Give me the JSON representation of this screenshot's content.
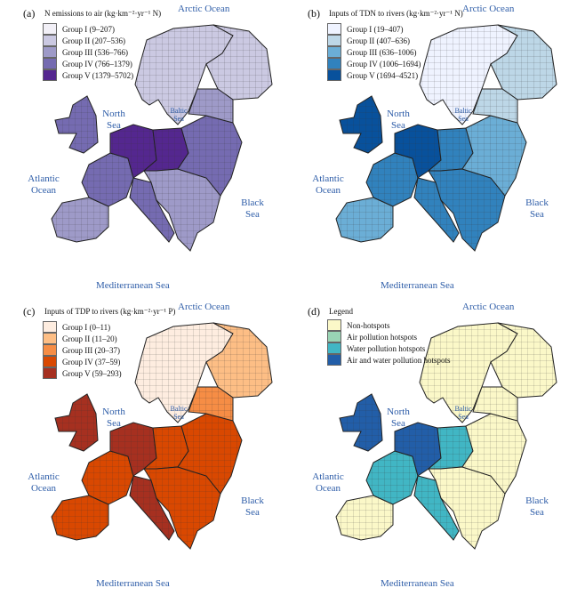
{
  "panels": [
    {
      "label": "(a)",
      "title": "N emissions to air (kg·km⁻²·yr⁻¹ N)",
      "legend": [
        "Group I (9–207)",
        "Group II (207–536)",
        "Group III (536–766)",
        "Group IV (766–1379)",
        "Group V (1379–5702)"
      ],
      "colors": [
        "#f2f0f7",
        "#cbc9e2",
        "#9e9ac8",
        "#756bb1",
        "#54278f"
      ],
      "region_groups": [
        1,
        1,
        3,
        2,
        3,
        4,
        4,
        3,
        2,
        3,
        2
      ]
    },
    {
      "label": "(b)",
      "title": "Inputs of TDN to rivers (kg·km⁻²·yr⁻¹ N)",
      "legend": [
        "Group I (19–407)",
        "Group II (407–636)",
        "Group III (636–1006)",
        "Group IV (1006–1694)",
        "Group V (1694–4521)"
      ],
      "colors": [
        "#eff3ff",
        "#bdd7e7",
        "#6baed6",
        "#3182bd",
        "#08519c"
      ],
      "region_groups": [
        0,
        1,
        4,
        2,
        3,
        4,
        3,
        3,
        3,
        2,
        1
      ]
    },
    {
      "label": "(c)",
      "title": "Inputs of TDP to rivers (kg·km⁻²·yr⁻¹ P)",
      "legend": [
        "Group I (0–11)",
        "Group II (11–20)",
        "Group III (20–37)",
        "Group IV (37–59)",
        "Group V (59–293)"
      ],
      "colors": [
        "#feede0",
        "#fdbe85",
        "#f68d45",
        "#d94801",
        "#a63020"
      ],
      "region_groups": [
        0,
        1,
        4,
        3,
        3,
        4,
        3,
        4,
        3,
        3,
        2
      ]
    },
    {
      "label": "(d)",
      "title": "Legend",
      "legend": [
        "Non-hotspots",
        "Air pollution hotspots",
        "Water pollution hotspots",
        "Air and water pollution hotspots"
      ],
      "colors": [
        "#fbf8c8",
        "#99d4b4",
        "#41b6c4",
        "#225ea8"
      ],
      "region_groups": [
        0,
        0,
        3,
        0,
        2,
        3,
        2,
        2,
        0,
        0,
        0
      ]
    }
  ],
  "seas": {
    "arctic": "Arctic Ocean",
    "north": "North Sea",
    "baltic": "Baltic Sea",
    "atlantic": "Atlantic Ocean",
    "black": "Black Sea",
    "med": "Mediterranean Sea"
  },
  "sea_color": "#2e5da8"
}
